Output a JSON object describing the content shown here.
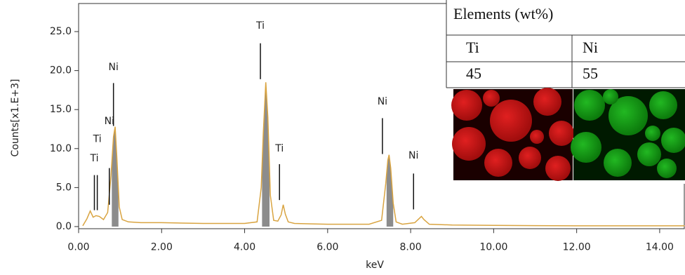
{
  "chart_data": {
    "type": "line",
    "xlabel": "keV",
    "ylabel": "Counts[x1.E+3]",
    "xlim": [
      0,
      14.6
    ],
    "ylim": [
      -0.3,
      28.6
    ],
    "xticks": [
      {
        "value": 0,
        "label": "0.00"
      },
      {
        "value": 2,
        "label": "2.00"
      },
      {
        "value": 4,
        "label": "4.00"
      },
      {
        "value": 6,
        "label": "6.00"
      },
      {
        "value": 8,
        "label": "8.00"
      },
      {
        "value": 10,
        "label": "10.00"
      },
      {
        "value": 12,
        "label": "12.00"
      },
      {
        "value": 14,
        "label": "14.00"
      }
    ],
    "yticks": [
      {
        "value": 0,
        "label": "0.0"
      },
      {
        "value": 5,
        "label": "5.0"
      },
      {
        "value": 10,
        "label": "10.0"
      },
      {
        "value": 15,
        "label": "15.0"
      },
      {
        "value": 20,
        "label": "20.0"
      },
      {
        "value": 25,
        "label": "25.0"
      }
    ],
    "x": [
      0.1,
      0.2,
      0.28,
      0.35,
      0.42,
      0.5,
      0.6,
      0.7,
      0.78,
      0.84,
      0.88,
      0.92,
      0.98,
      1.05,
      1.2,
      1.5,
      2.0,
      2.5,
      3.0,
      3.5,
      4.0,
      4.3,
      4.4,
      4.45,
      4.51,
      4.56,
      4.62,
      4.7,
      4.8,
      4.88,
      4.93,
      4.98,
      5.05,
      5.2,
      5.6,
      6.0,
      6.5,
      7.0,
      7.3,
      7.4,
      7.45,
      7.48,
      7.52,
      7.58,
      7.65,
      7.8,
      8.1,
      8.2,
      8.26,
      8.32,
      8.45,
      9.0,
      10,
      11,
      12,
      13,
      14,
      14.6
    ],
    "series": [
      {
        "color": "#d9a441",
        "values": [
          0.1,
          1.0,
          2.0,
          1.2,
          1.4,
          1.3,
          0.9,
          1.8,
          6.5,
          11.5,
          12.8,
          9.0,
          2.5,
          0.9,
          0.6,
          0.5,
          0.5,
          0.45,
          0.4,
          0.4,
          0.4,
          0.6,
          5.0,
          12.0,
          18.5,
          14.0,
          4.0,
          0.8,
          0.7,
          1.5,
          2.8,
          1.6,
          0.6,
          0.4,
          0.35,
          0.3,
          0.3,
          0.3,
          0.8,
          5.5,
          8.5,
          9.2,
          7.5,
          3.0,
          0.6,
          0.3,
          0.5,
          1.0,
          1.3,
          0.9,
          0.3,
          0.2,
          0.15,
          0.12,
          0.1,
          0.1,
          0.1,
          0.1
        ]
      }
    ],
    "shaded_regions": [
      [
        0.8,
        0.96
      ],
      [
        4.42,
        4.6
      ],
      [
        7.42,
        7.58
      ]
    ],
    "shade_color": "#8c8c8c",
    "annotations": [
      {
        "text": "Ti",
        "x": 0.38,
        "y": 8.7,
        "line_top": 6.6,
        "line_bottom": 2.1
      },
      {
        "text": "Ti",
        "x": 0.45,
        "y": 11.2,
        "line_top": 6.6,
        "line_bottom": 2.1
      },
      {
        "text": "Ni",
        "x": 0.74,
        "y": 13.5,
        "line_top": 7.5,
        "line_bottom": 2.8
      },
      {
        "text": "Ni",
        "x": 0.84,
        "y": 20.4,
        "line_top": 18.4,
        "line_bottom": 12.9
      },
      {
        "text": "Ti",
        "x": 4.38,
        "y": 25.7,
        "line_top": 23.5,
        "line_bottom": 18.9
      },
      {
        "text": "Ti",
        "x": 4.84,
        "y": 10.0,
        "line_top": 8.0,
        "line_bottom": 3.4
      },
      {
        "text": "Ni",
        "x": 7.32,
        "y": 16.0,
        "line_top": 13.9,
        "line_bottom": 9.3
      },
      {
        "text": "Ni",
        "x": 8.07,
        "y": 9.1,
        "line_top": 6.8,
        "line_bottom": 2.2
      }
    ],
    "inset_table": {
      "title": "Elements (wt%)",
      "header": [
        "Ti",
        "Ni"
      ],
      "row": [
        45,
        55
      ]
    }
  }
}
